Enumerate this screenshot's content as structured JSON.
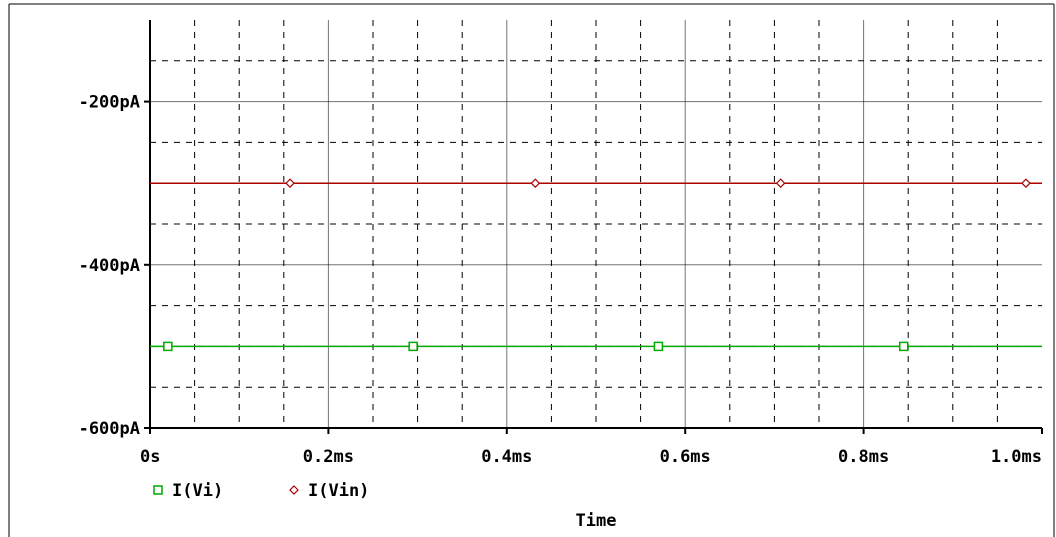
{
  "colors": {
    "background": "#ffffff",
    "frame": "#000000",
    "major_grid": "#000000",
    "minor_grid": "#000000",
    "series_vi": "#00aa00",
    "series_vin": "#aa0000"
  },
  "chart_data": {
    "type": "line",
    "title": "",
    "xlabel": "Time",
    "ylabel": "",
    "xlim": [
      0,
      1.0
    ],
    "ylim": [
      -600,
      -100
    ],
    "x_unit": "ms",
    "y_unit": "pA",
    "grid": true,
    "legend_position": "bottom-left",
    "x_ticks": [
      {
        "value": 0,
        "label": "0s"
      },
      {
        "value": 0.2,
        "label": "0.2ms"
      },
      {
        "value": 0.4,
        "label": "0.4ms"
      },
      {
        "value": 0.6,
        "label": "0.6ms"
      },
      {
        "value": 0.8,
        "label": "0.8ms"
      },
      {
        "value": 1.0,
        "label": "1.0ms"
      }
    ],
    "y_ticks": [
      {
        "value": -200,
        "label": "-200pA"
      },
      {
        "value": -400,
        "label": "-400pA"
      },
      {
        "value": -600,
        "label": "-600pA"
      }
    ],
    "series": [
      {
        "name": "I(Vi)",
        "marker": "square",
        "color": "#00aa00",
        "x": [
          0,
          1.0
        ],
        "y": [
          -500,
          -500
        ],
        "marker_x": [
          0.02,
          0.295,
          0.57,
          0.845
        ]
      },
      {
        "name": "I(Vin)",
        "marker": "diamond",
        "color": "#aa0000",
        "x": [
          0,
          1.0
        ],
        "y": [
          -300,
          -300
        ],
        "marker_x": [
          0.157,
          0.432,
          0.707,
          0.982
        ]
      }
    ]
  }
}
